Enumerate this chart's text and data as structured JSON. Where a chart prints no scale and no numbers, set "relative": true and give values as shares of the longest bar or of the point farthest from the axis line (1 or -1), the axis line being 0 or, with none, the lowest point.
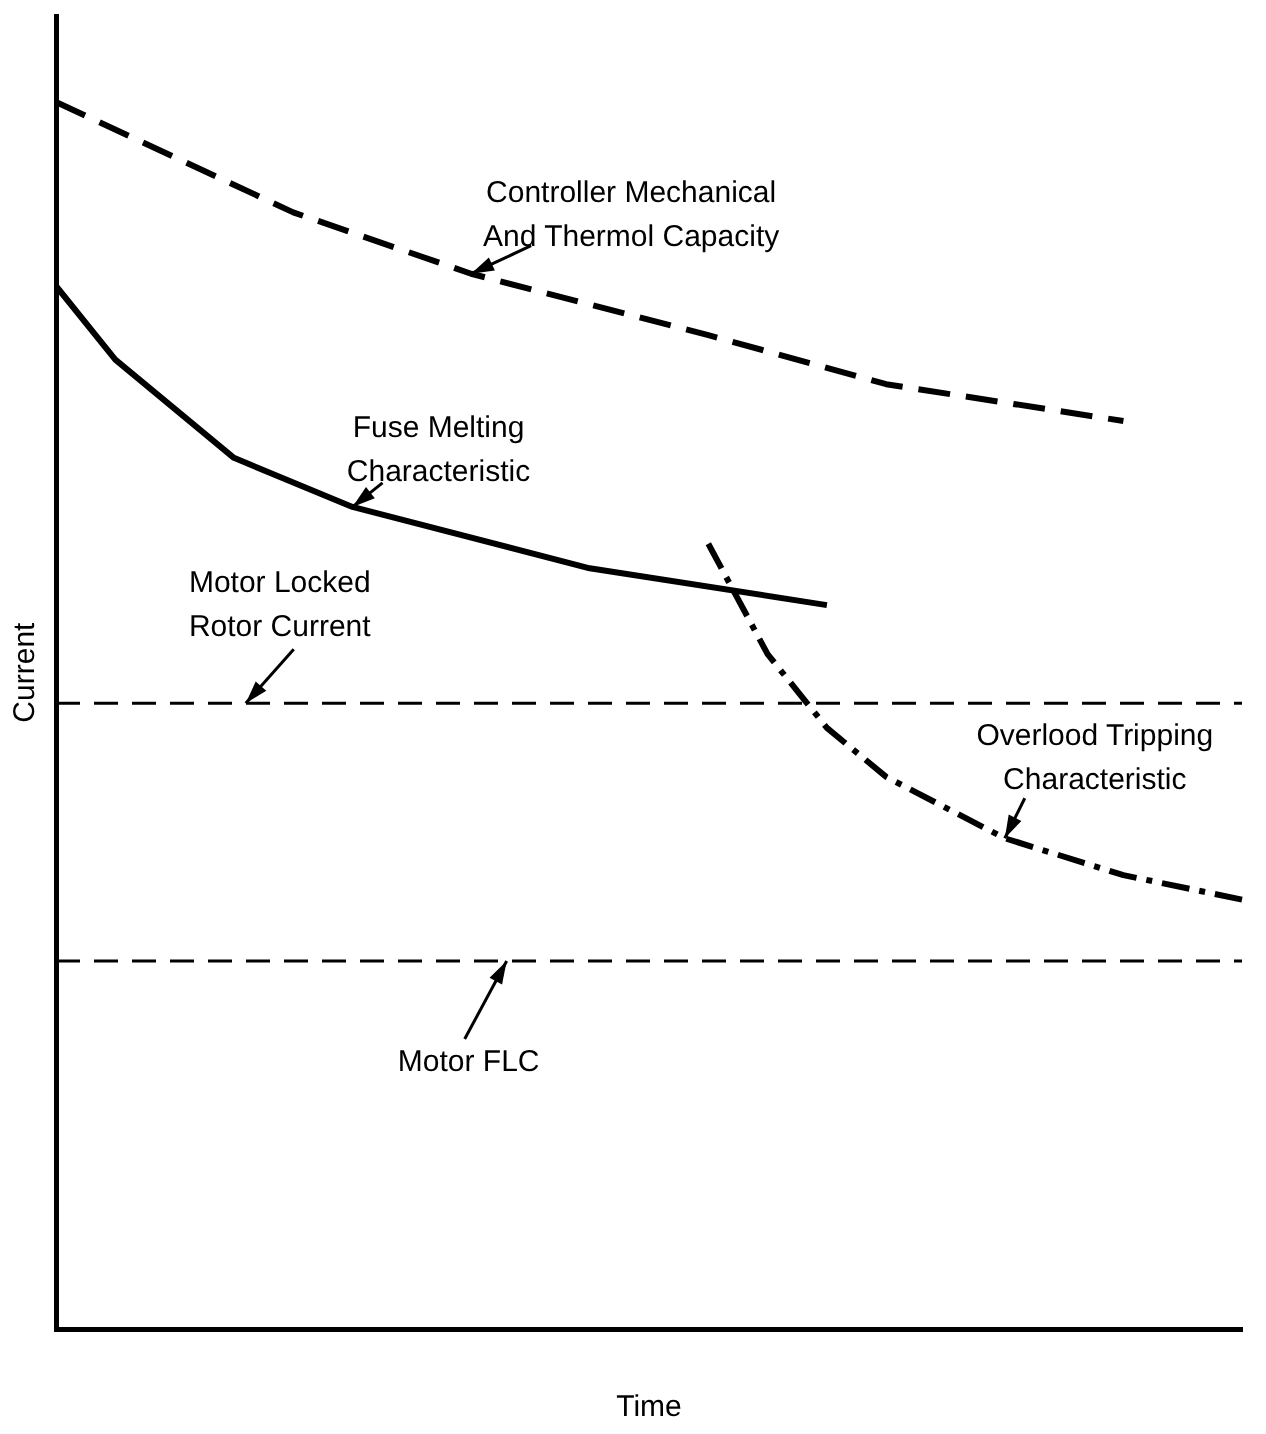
{
  "chart_data": {
    "type": "line",
    "relative": true,
    "xlabel": "Time",
    "ylabel": "Current",
    "legend": false,
    "marker": "none",
    "categories": [
      null,
      null,
      null,
      null,
      null,
      null,
      null,
      null,
      null,
      null,
      null,
      null,
      null,
      null,
      null,
      null,
      null,
      null,
      null,
      null,
      null
    ],
    "series": [
      {
        "name": "Controller Mechanical\nAnd Thermol Capacity",
        "color": "#000000",
        "line_style": "dashed",
        "values": [
          1.0,
          null,
          null,
          null,
          0.91,
          null,
          null,
          0.86,
          null,
          null,
          null,
          0.81,
          null,
          null,
          0.77,
          null,
          null,
          null,
          0.74,
          null,
          null
        ]
      },
      {
        "name": "Fuse Melting\nCharacteristic",
        "color": "#000000",
        "line_style": "solid",
        "values": [
          0.85,
          0.79,
          null,
          0.71,
          null,
          0.67,
          null,
          null,
          null,
          0.62,
          null,
          null,
          null,
          0.59,
          null,
          null,
          null,
          null,
          null,
          null,
          null
        ]
      },
      {
        "name": "Overlood Tripping\nCharacteristic",
        "color": "#000000",
        "line_style": "dashdot",
        "values": [
          null,
          null,
          null,
          null,
          null,
          null,
          null,
          null,
          null,
          null,
          null,
          0.64,
          0.55,
          0.49,
          0.45,
          null,
          0.4,
          null,
          0.37,
          null,
          0.35
        ]
      }
    ],
    "ref_lines": [
      {
        "axis": "y",
        "value": 0.51,
        "label": "Motor Locked\nRotor Current",
        "color": "#000000",
        "line_style": "dashed"
      },
      {
        "axis": "y",
        "value": 0.3,
        "label": "Motor FLC",
        "color": "#000000",
        "line_style": "dashed"
      }
    ]
  }
}
